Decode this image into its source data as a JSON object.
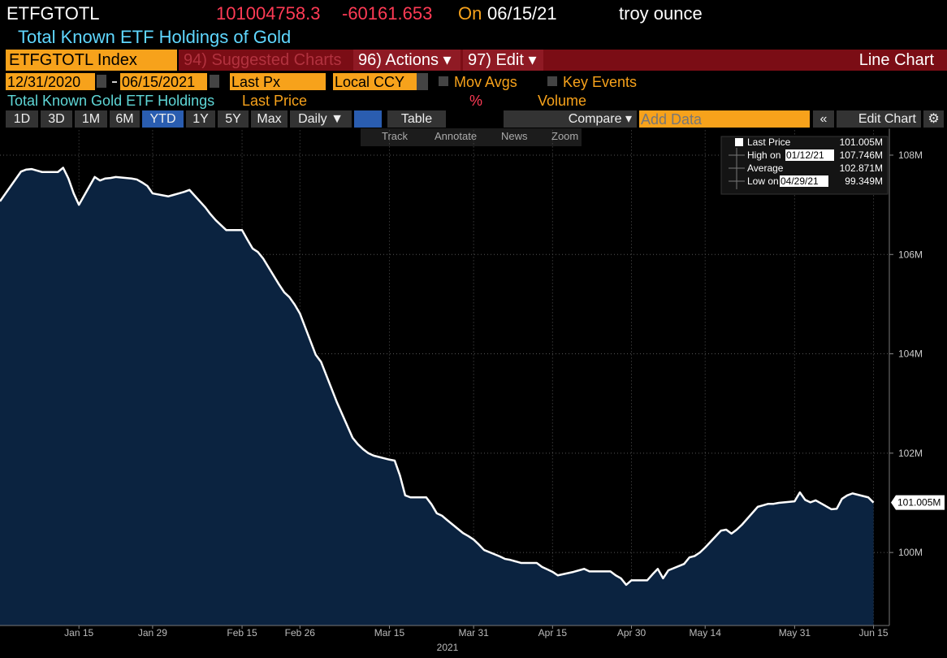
{
  "header": {
    "ticker": "ETFGTOTL",
    "price": "101004758.3",
    "change": "-60161.653",
    "on": "On",
    "date": "06/15/21",
    "unit": "troy ounce",
    "description": "Total Known ETF Holdings of Gold"
  },
  "toolbar": {
    "security": "ETFGTOTL Index",
    "suggested": "94) Suggested Charts",
    "actions": "96) Actions ▾",
    "edit": "97) Edit ▾",
    "chart_type": "Line Chart"
  },
  "range": {
    "start": "12/31/2020",
    "end": "06/15/2021",
    "field": "Last Px",
    "currency": "Local CCY",
    "mov_avgs": "Mov Avgs",
    "key_events": "Key Events"
  },
  "studies": {
    "name": "Total Known Gold ETF Holdings",
    "field": "Last Price",
    "pct": "%",
    "volume": "Volume"
  },
  "periods": [
    "1D",
    "3D",
    "1M",
    "6M",
    "YTD",
    "1Y",
    "5Y",
    "Max"
  ],
  "buttons": {
    "frequency": "Daily ▼",
    "table": "Table",
    "compare": "Compare ▾",
    "add_data": "Add Data",
    "collapse": "«",
    "edit_chart": "Edit Chart"
  },
  "chart_tools": [
    "Track",
    "Annotate",
    "News",
    "Zoom"
  ],
  "chart_data": {
    "type": "area",
    "x": [
      "2020-12-31",
      "2021-01-04",
      "2021-01-05",
      "2021-01-06",
      "2021-01-07",
      "2021-01-08",
      "2021-01-11",
      "2021-01-12",
      "2021-01-13",
      "2021-01-14",
      "2021-01-15",
      "2021-01-18",
      "2021-01-19",
      "2021-01-20",
      "2021-01-21",
      "2021-01-22",
      "2021-01-25",
      "2021-01-26",
      "2021-01-27",
      "2021-01-28",
      "2021-01-29",
      "2021-02-01",
      "2021-02-02",
      "2021-02-03",
      "2021-02-04",
      "2021-02-05",
      "2021-02-08",
      "2021-02-09",
      "2021-02-10",
      "2021-02-11",
      "2021-02-12",
      "2021-02-15",
      "2021-02-16",
      "2021-02-17",
      "2021-02-18",
      "2021-02-19",
      "2021-02-22",
      "2021-02-23",
      "2021-02-24",
      "2021-02-25",
      "2021-02-26",
      "2021-03-01",
      "2021-03-02",
      "2021-03-03",
      "2021-03-04",
      "2021-03-05",
      "2021-03-08",
      "2021-03-09",
      "2021-03-10",
      "2021-03-11",
      "2021-03-12",
      "2021-03-15",
      "2021-03-16",
      "2021-03-17",
      "2021-03-18",
      "2021-03-19",
      "2021-03-22",
      "2021-03-23",
      "2021-03-24",
      "2021-03-25",
      "2021-03-26",
      "2021-03-29",
      "2021-03-30",
      "2021-03-31",
      "2021-04-01",
      "2021-04-02",
      "2021-04-05",
      "2021-04-06",
      "2021-04-07",
      "2021-04-08",
      "2021-04-09",
      "2021-04-12",
      "2021-04-13",
      "2021-04-14",
      "2021-04-15",
      "2021-04-16",
      "2021-04-19",
      "2021-04-20",
      "2021-04-21",
      "2021-04-22",
      "2021-04-23",
      "2021-04-26",
      "2021-04-27",
      "2021-04-28",
      "2021-04-29",
      "2021-04-30",
      "2021-05-03",
      "2021-05-04",
      "2021-05-05",
      "2021-05-06",
      "2021-05-07",
      "2021-05-10",
      "2021-05-11",
      "2021-05-12",
      "2021-05-13",
      "2021-05-14",
      "2021-05-17",
      "2021-05-18",
      "2021-05-19",
      "2021-05-20",
      "2021-05-21",
      "2021-05-24",
      "2021-05-25",
      "2021-05-26",
      "2021-05-27",
      "2021-05-28",
      "2021-05-31",
      "2021-06-01",
      "2021-06-02",
      "2021-06-03",
      "2021-06-04",
      "2021-06-07",
      "2021-06-08",
      "2021-06-09",
      "2021-06-10",
      "2021-06-11",
      "2021-06-14",
      "2021-06-15"
    ],
    "series": [
      {
        "name": "Last Price",
        "color": "#ffffff",
        "fill": "#0b2340",
        "value_label": "101.005M",
        "values": [
          107070000,
          107670000,
          107710000,
          107720000,
          107690000,
          107660000,
          107660000,
          107746000,
          107530000,
          107230000,
          107000000,
          107560000,
          107490000,
          107530000,
          107540000,
          107560000,
          107530000,
          107510000,
          107450000,
          107380000,
          107230000,
          107170000,
          107200000,
          107230000,
          107260000,
          107300000,
          106950000,
          106810000,
          106690000,
          106590000,
          106490000,
          106490000,
          106300000,
          106120000,
          106050000,
          105920000,
          105400000,
          105240000,
          105140000,
          104990000,
          104810000,
          103980000,
          103840000,
          103570000,
          103300000,
          103030000,
          102310000,
          102180000,
          102080000,
          102000000,
          101950000,
          101870000,
          101850000,
          101550000,
          101150000,
          101110000,
          101110000,
          100970000,
          100790000,
          100740000,
          100650000,
          100390000,
          100330000,
          100260000,
          100160000,
          100050000,
          99920000,
          99870000,
          99850000,
          99820000,
          99790000,
          99790000,
          99710000,
          99660000,
          99610000,
          99540000,
          99610000,
          99640000,
          99670000,
          99620000,
          99620000,
          99620000,
          99540000,
          99480000,
          99349000,
          99440000,
          99440000,
          99560000,
          99670000,
          99480000,
          99640000,
          99770000,
          99900000,
          99930000,
          100000000,
          100100000,
          100440000,
          100460000,
          100380000,
          100460000,
          100560000,
          100920000,
          100950000,
          100980000,
          100980000,
          101000000,
          101030000,
          101210000,
          101060000,
          101010000,
          101050000,
          100870000,
          100880000,
          101080000,
          101150000,
          101190000,
          101110000,
          101004758.3
        ]
      }
    ],
    "stats": [
      {
        "label": "High on",
        "date": "01/12/21",
        "value": "107.746M"
      },
      {
        "label": "Average",
        "value": "102.871M"
      },
      {
        "label": "Low on",
        "date": "04/29/21",
        "value": "99.349M"
      }
    ],
    "xlim": [
      "2020-12-31",
      "2021-06-18"
    ],
    "xticks": [
      {
        "value": "2021-01-15",
        "label": "Jan 15"
      },
      {
        "value": "2021-01-29",
        "label": "Jan 29"
      },
      {
        "value": "2021-02-15",
        "label": "Feb 15"
      },
      {
        "value": "2021-02-26",
        "label": "Feb 26"
      },
      {
        "value": "2021-03-15",
        "label": "Mar 15"
      },
      {
        "value": "2021-03-31",
        "label": "Mar 31"
      },
      {
        "value": "2021-04-15",
        "label": "Apr 15"
      },
      {
        "value": "2021-04-30",
        "label": "Apr 30"
      },
      {
        "value": "2021-05-14",
        "label": "May 14"
      },
      {
        "value": "2021-05-31",
        "label": "May 31"
      },
      {
        "value": "2021-06-15",
        "label": "Jun 15"
      }
    ],
    "xlabel": "2021",
    "ylim": [
      98530000,
      108500000
    ],
    "yticks": [
      {
        "value": 100000000,
        "label": "100M"
      },
      {
        "value": 102000000,
        "label": "102M"
      },
      {
        "value": 104000000,
        "label": "104M"
      },
      {
        "value": 106000000,
        "label": "106M"
      },
      {
        "value": 108000000,
        "label": "108M"
      }
    ],
    "grid": true
  }
}
